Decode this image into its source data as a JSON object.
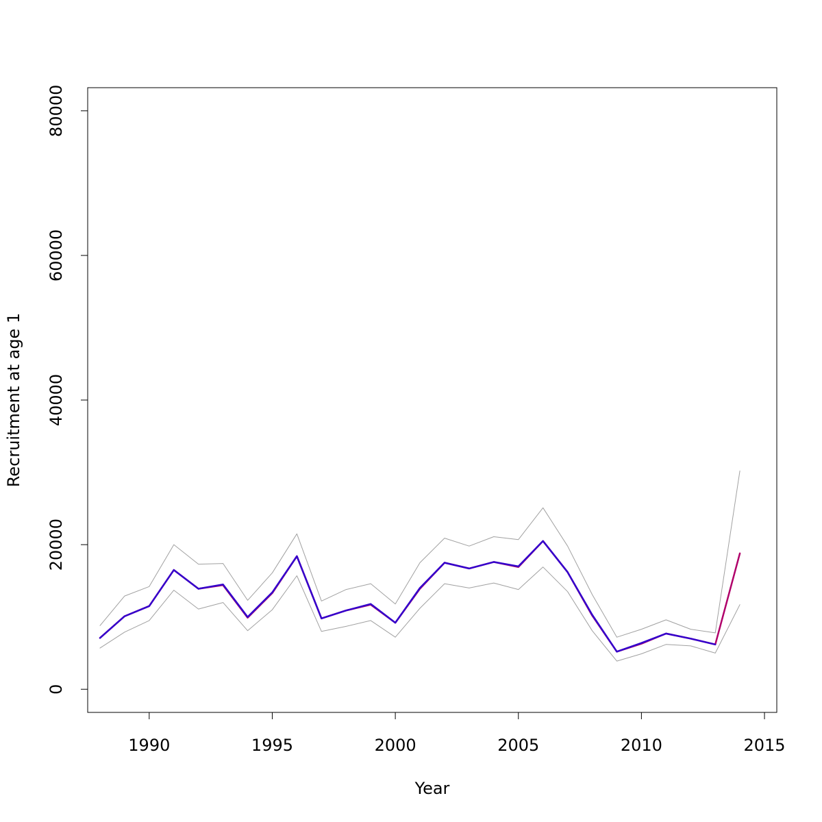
{
  "chart_data": {
    "type": "line",
    "title": "",
    "xlabel": "Year",
    "ylabel": "Recruitment at age 1",
    "xlim": [
      1987.5,
      2015.5
    ],
    "ylim": [
      -3200,
      83200
    ],
    "xticks": [
      1990,
      1995,
      2000,
      2005,
      2010,
      2015
    ],
    "yticks": [
      0,
      20000,
      40000,
      60000,
      80000
    ],
    "xtick_labels": [
      "1990",
      "1995",
      "2000",
      "2005",
      "2010",
      "2015"
    ],
    "ytick_labels": [
      "0",
      "20000",
      "40000",
      "60000",
      "80000"
    ],
    "grid": false,
    "legend": "none",
    "x": [
      1988,
      1989,
      1990,
      1991,
      1992,
      1993,
      1994,
      1995,
      1996,
      1997,
      1998,
      1999,
      2000,
      2001,
      2002,
      2003,
      2004,
      2005,
      2006,
      2007,
      2008,
      2009,
      2010,
      2011,
      2012,
      2013,
      2014
    ],
    "series": [
      {
        "color": "#a0a0a0",
        "width": 1,
        "values": [
          8800,
          12900,
          14200,
          20000,
          17300,
          17400,
          12300,
          16100,
          21500,
          12200,
          13800,
          14600,
          11800,
          17500,
          20900,
          19800,
          21100,
          20700,
          25100,
          19800,
          13100,
          7200,
          8300,
          9600,
          8300,
          7800,
          30200
        ]
      },
      {
        "color": "#a0a0a0",
        "width": 1,
        "values": [
          5700,
          7900,
          9500,
          13700,
          11100,
          12000,
          8100,
          11000,
          15700,
          8000,
          8700,
          9500,
          7200,
          11200,
          14600,
          14000,
          14700,
          13800,
          16900,
          13500,
          8100,
          3900,
          4900,
          6200,
          6000,
          5000,
          11700
        ]
      },
      {
        "color": "#b0006a",
        "width": 2.5,
        "values": [
          7100,
          10100,
          11500,
          16500,
          13900,
          14400,
          9900,
          13300,
          18400,
          9800,
          10900,
          11700,
          9200,
          13900,
          17500,
          16700,
          17600,
          16900,
          20500,
          16200,
          10200,
          5200,
          6300,
          7700,
          7000,
          6200,
          18800
        ]
      },
      {
        "color": "#3300cc",
        "width": 2.5,
        "values": [
          7100,
          10100,
          11500,
          16500,
          13900,
          14500,
          10000,
          13400,
          18400,
          9800,
          10900,
          11800,
          9200,
          14000,
          17500,
          16700,
          17600,
          17000,
          20500,
          16200,
          10300,
          5200,
          6400,
          7700,
          7000,
          6200,
          null
        ]
      }
    ]
  }
}
